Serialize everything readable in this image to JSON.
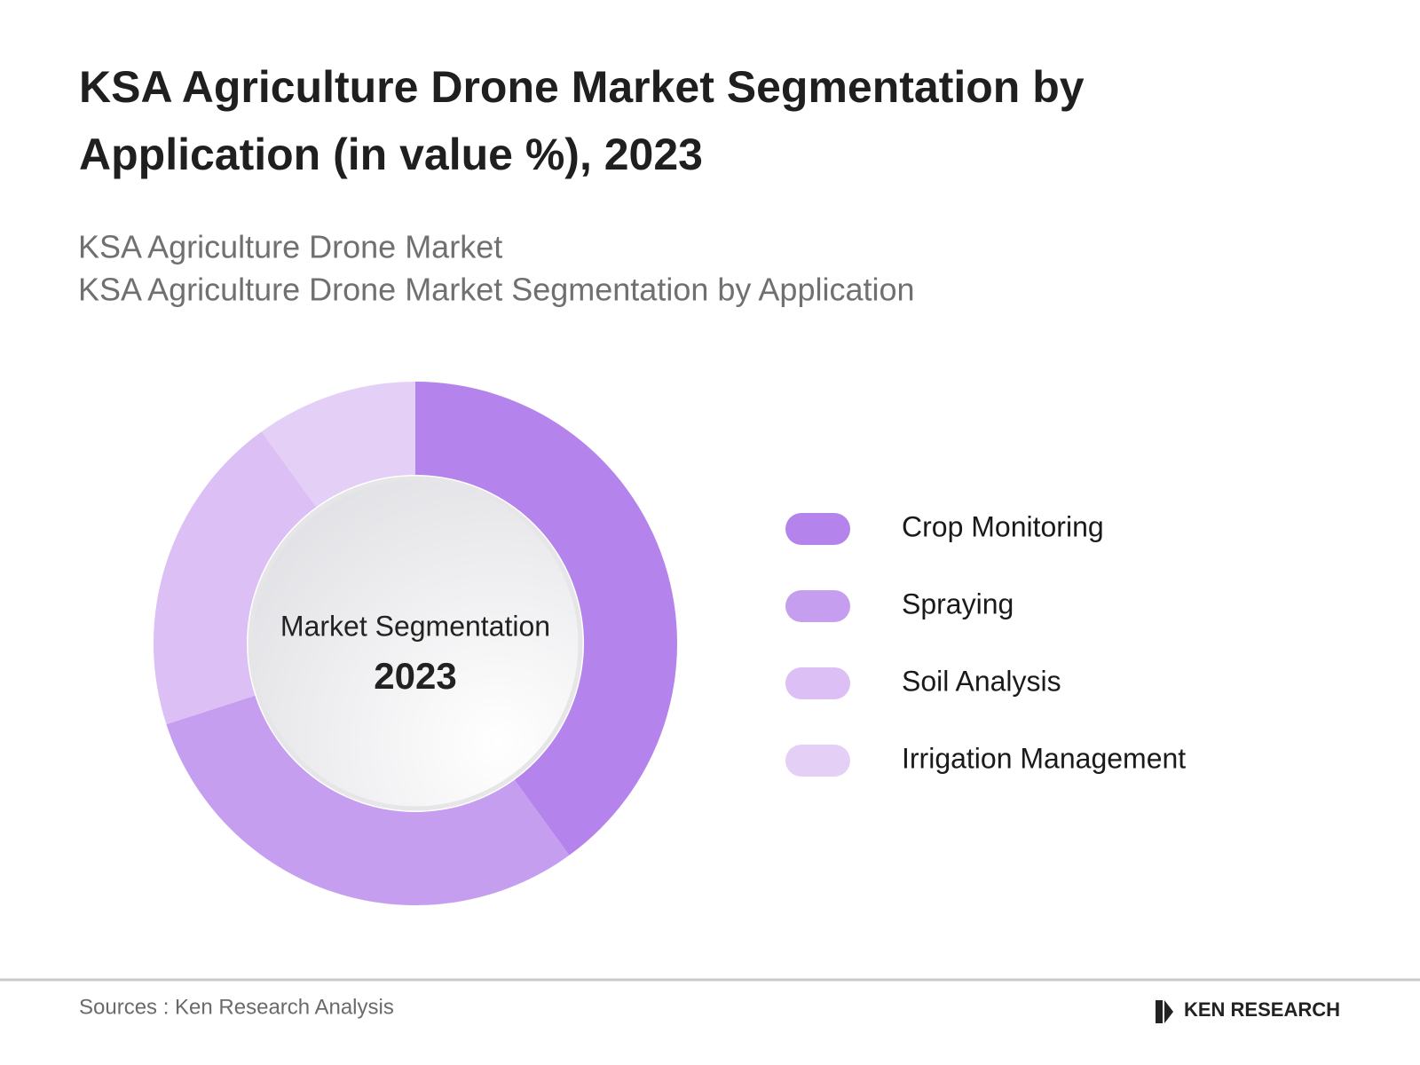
{
  "chart_data": {
    "type": "donut",
    "title": [
      "KSA Agriculture Drone Market Segmentation by",
      "Application (in value %), 2023"
    ],
    "subtitle": [
      "KSA Agriculture Drone Market",
      "KSA Agriculture Drone Market Segmentation by Application"
    ],
    "center_label": "Market Segmentation",
    "center_year": "2023",
    "categories": [
      "Crop Monitoring",
      "Spraying",
      "Soil Analysis",
      "Irrigation Management"
    ],
    "values": [
      40,
      30,
      20,
      10
    ],
    "colors": [
      "#b484ec",
      "#c69ef0",
      "#dbbff5",
      "#e4d0f7"
    ]
  },
  "footer": {
    "source": "Sources : Ken Research Analysis",
    "brand": "KEN RESEARCH"
  }
}
